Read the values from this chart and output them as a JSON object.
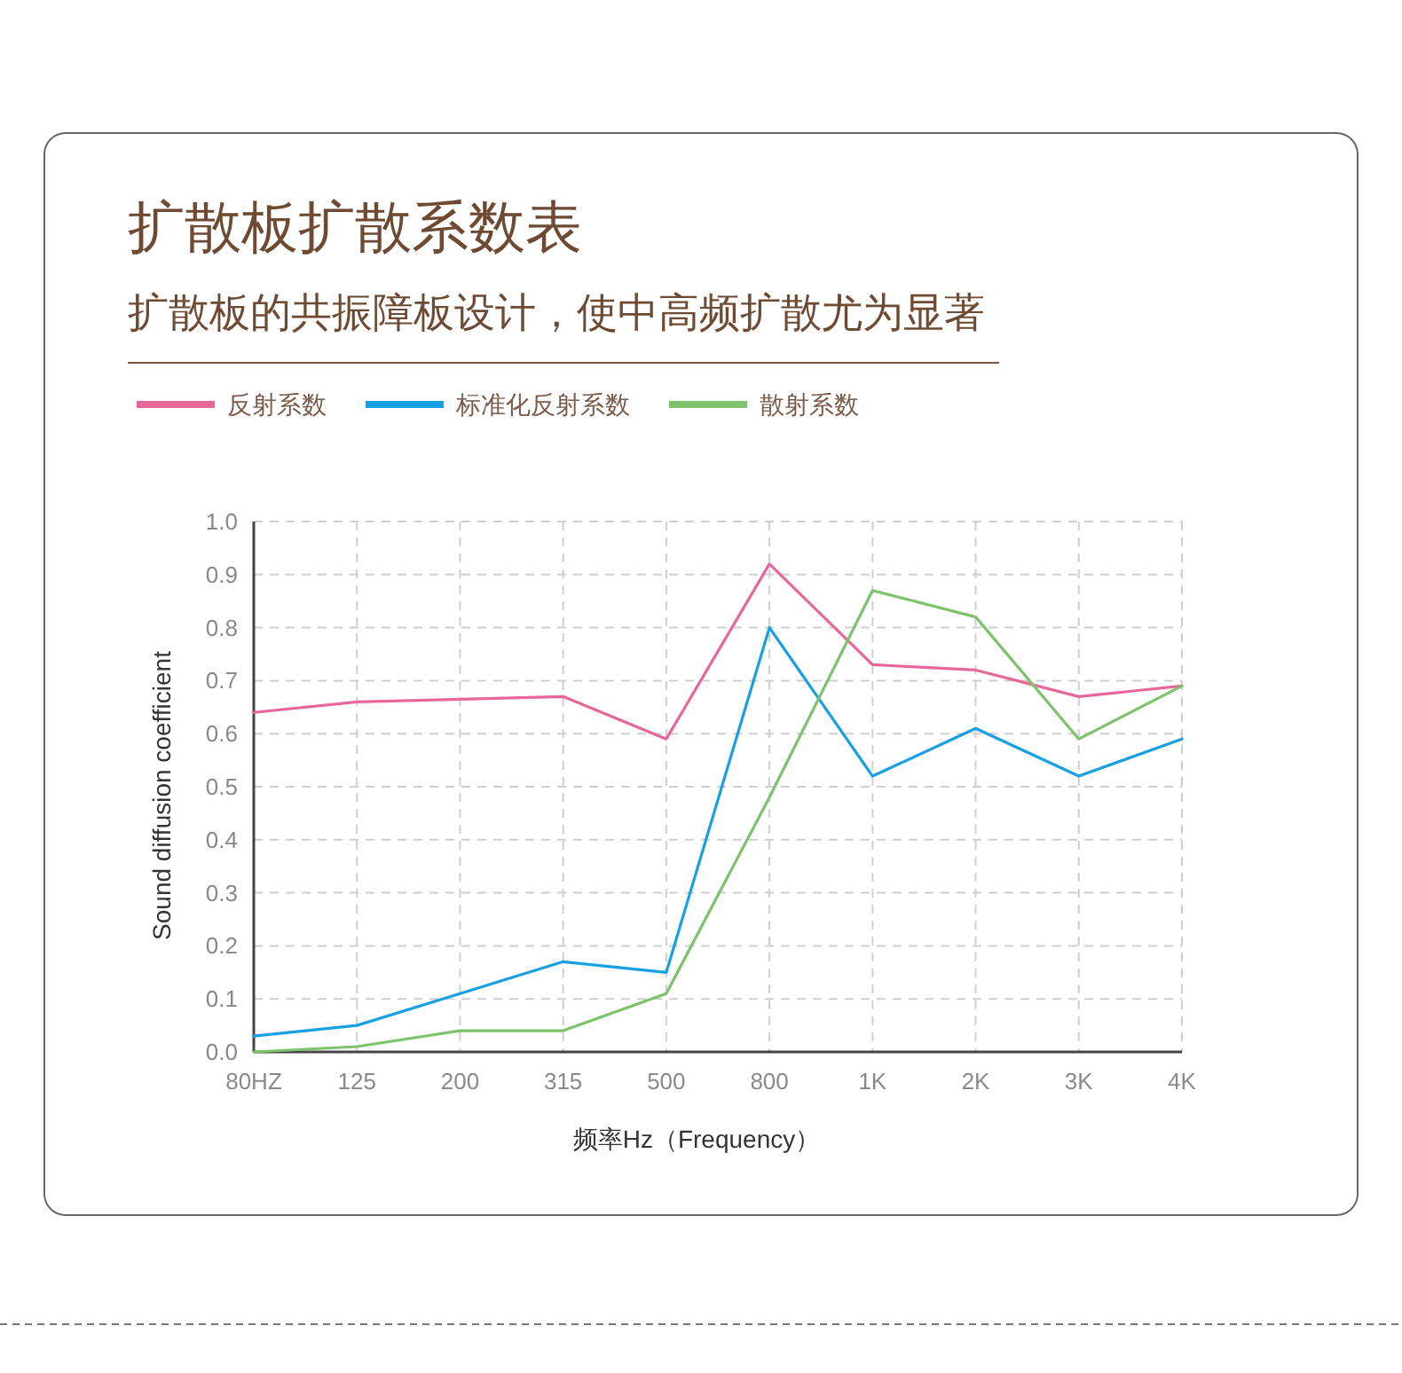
{
  "chart_data": {
    "type": "line",
    "title": "扩散板扩散系数表",
    "subtitle": "扩散板的共振障板设计，使中高频扩散尤为显著",
    "xlabel": "频率Hz（Frequency）",
    "ylabel": "Sound diffusion coefficient",
    "categories": [
      "80HZ",
      "125",
      "200",
      "315",
      "500",
      "800",
      "1K",
      "2K",
      "3K",
      "4K"
    ],
    "series": [
      {
        "name": "反射系数",
        "color": "#e8679b",
        "values": [
          0.64,
          0.66,
          0.665,
          0.67,
          0.59,
          0.92,
          0.73,
          0.72,
          0.67,
          0.69
        ]
      },
      {
        "name": "标准化反射系数",
        "color": "#18a0e2",
        "values": [
          0.03,
          0.05,
          0.11,
          0.17,
          0.15,
          0.8,
          0.52,
          0.61,
          0.52,
          0.59
        ]
      },
      {
        "name": "散射系数",
        "color": "#7dc36b",
        "values": [
          0.0,
          0.01,
          0.04,
          0.04,
          0.11,
          0.48,
          0.87,
          0.82,
          0.59,
          0.69
        ]
      }
    ],
    "ylim": [
      0,
      1
    ],
    "yticks": [
      {
        "value": 0,
        "label": "0.0"
      },
      {
        "value": 0.1,
        "label": "0.1"
      },
      {
        "value": 0.2,
        "label": "0.2"
      },
      {
        "value": 0.3,
        "label": "0.3"
      },
      {
        "value": 0.4,
        "label": "0.4"
      },
      {
        "value": 0.5,
        "label": "0.5"
      },
      {
        "value": 0.6,
        "label": "0.6"
      },
      {
        "value": 0.7,
        "label": "0.7"
      },
      {
        "value": 0.8,
        "label": "0.8"
      },
      {
        "value": 0.9,
        "label": "0.9"
      },
      {
        "value": 1,
        "label": "1.0"
      }
    ],
    "grid": true,
    "legend": "top left",
    "line_style": "solid"
  }
}
